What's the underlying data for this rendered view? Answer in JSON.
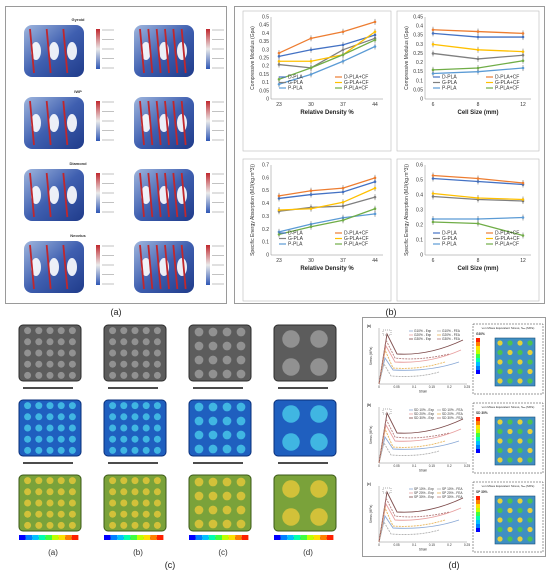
{
  "captions": {
    "a": "(a)",
    "b": "(b)",
    "c": "(c)",
    "d": "(d)"
  },
  "panel_a": {
    "rows": [
      {
        "label": "Gyroid"
      },
      {
        "label": "IWP"
      },
      {
        "label": "Diamond"
      },
      {
        "label": "Neovius"
      }
    ]
  },
  "panel_c": {
    "col_labels": [
      "(a)",
      "(b)",
      "(c)",
      "(d)"
    ]
  },
  "panel_d": {
    "subplots": [
      {
        "tag": "(a)",
        "contour_title": "von Mises Equivalent Stress, Sₑₙ (MPa)",
        "contour_tag": "G30%",
        "legend": [
          "G10% - Exp",
          "G20% - Exp",
          "G30% - Exp",
          "G10% - FEA",
          "G20% - FEA",
          "G30% - FEA"
        ]
      },
      {
        "tag": "(b)",
        "contour_title": "von Mises Equivalent Stress, Sₑₙ (MPa)",
        "contour_tag": "SD 30%",
        "legend": [
          "SD 10% - Exp",
          "SD 20% - Exp",
          "SD 30% - Exp",
          "SD 10% - FEA",
          "SD 20% - FEA",
          "SD 30% - FEA"
        ]
      },
      {
        "tag": "(c)",
        "contour_title": "von Mises Equivalent Stress, Sₑₙ (MPa)",
        "contour_tag": "SP 30%",
        "legend": [
          "SP 10% - Exp",
          "SP 20% - Exp",
          "SP 30% - Exp",
          "SP 10% - FEA",
          "SP 20% - FEA",
          "SP 30% - FEA"
        ]
      }
    ],
    "xlabel": "Strain",
    "ylabel": "Stress (MPa)",
    "xticks": [
      "0",
      "0.05",
      "0.1",
      "0.15",
      "0.2",
      "0.25"
    ]
  },
  "colors": {
    "d_pla": "#4472c4",
    "g_pla": "#7f7f7f",
    "p_pla": "#5b9bd5",
    "d_cf": "#ed7d31",
    "g_cf": "#ffc000",
    "p_cf": "#70ad47",
    "frame": "#9a9a9a"
  },
  "chart_data": [
    {
      "type": "line",
      "x": [
        "23",
        "30",
        "37",
        "44"
      ],
      "xlabel": "Relative Density %",
      "ylabel": "Compressive Modulus (Gpa)",
      "ylim": [
        0,
        0.5
      ],
      "yticks": [
        "0",
        "0.05",
        "0.1",
        "0.15",
        "0.2",
        "0.25",
        "0.3",
        "0.35",
        "0.4",
        "0.45",
        "0.5"
      ],
      "series": [
        {
          "name": "D-PLA",
          "values": [
            0.26,
            0.3,
            0.33,
            0.39
          ]
        },
        {
          "name": "D-PLA+CF",
          "values": [
            0.28,
            0.37,
            0.41,
            0.47
          ]
        },
        {
          "name": "G-PLA",
          "values": [
            0.21,
            0.19,
            0.3,
            0.37
          ]
        },
        {
          "name": "G-PLA+CF",
          "values": [
            0.23,
            0.23,
            0.27,
            0.41
          ]
        },
        {
          "name": "P-PLA",
          "values": [
            0.09,
            0.15,
            0.23,
            0.32
          ]
        },
        {
          "name": "P-PLA+CF",
          "values": [
            0.12,
            0.19,
            0.27,
            0.36
          ]
        }
      ],
      "legend": "bottom"
    },
    {
      "type": "line",
      "x": [
        "6",
        "8",
        "12"
      ],
      "xlabel": "Cell Size (mm)",
      "ylabel": "Compressive Modulus (Gpa)",
      "ylim": [
        0,
        0.45
      ],
      "yticks": [
        "0",
        "0.05",
        "0.1",
        "0.15",
        "0.2",
        "0.25",
        "0.3",
        "0.35",
        "0.4",
        "0.45"
      ],
      "series": [
        {
          "name": "D-PLA",
          "values": [
            0.36,
            0.34,
            0.34
          ]
        },
        {
          "name": "D-PLA+CF",
          "values": [
            0.38,
            0.37,
            0.36
          ]
        },
        {
          "name": "G-PLA",
          "values": [
            0.25,
            0.22,
            0.24
          ]
        },
        {
          "name": "G-PLA+CF",
          "values": [
            0.3,
            0.27,
            0.26
          ]
        },
        {
          "name": "P-PLA",
          "values": [
            0.14,
            0.15,
            0.17
          ]
        },
        {
          "name": "P-PLA+CF",
          "values": [
            0.16,
            0.17,
            0.21
          ]
        }
      ],
      "legend": "bottom"
    },
    {
      "type": "line",
      "x": [
        "23",
        "30",
        "37",
        "44"
      ],
      "xlabel": "Relative Density %",
      "ylabel": "Specific Energy Absorption (MJ/(kg.m^3))",
      "ylim": [
        0,
        0.7
      ],
      "yticks": [
        "0",
        "0.1",
        "0.2",
        "0.3",
        "0.4",
        "0.5",
        "0.6",
        "0.7"
      ],
      "series": [
        {
          "name": "D-PLA",
          "values": [
            0.44,
            0.47,
            0.49,
            0.57
          ]
        },
        {
          "name": "D-PLA+CF",
          "values": [
            0.46,
            0.5,
            0.52,
            0.6
          ]
        },
        {
          "name": "G-PLA",
          "values": [
            0.34,
            0.37,
            0.38,
            0.45
          ]
        },
        {
          "name": "G-PLA+CF",
          "values": [
            0.35,
            0.36,
            0.41,
            0.52
          ]
        },
        {
          "name": "P-PLA",
          "values": [
            0.18,
            0.24,
            0.29,
            0.32
          ]
        },
        {
          "name": "P-PLA+CF",
          "values": [
            0.16,
            0.22,
            0.27,
            0.36
          ]
        }
      ],
      "legend": "bottom"
    },
    {
      "type": "line",
      "x": [
        "6",
        "8",
        "12"
      ],
      "xlabel": "Cell Size (mm)",
      "ylabel": "Specific Energy Absorption (MJ/(kg.m^3))",
      "ylim": [
        0,
        0.6
      ],
      "yticks": [
        "0",
        "0.1",
        "0.2",
        "0.3",
        "0.4",
        "0.5",
        "0.6"
      ],
      "series": [
        {
          "name": "D-PLA",
          "values": [
            0.51,
            0.49,
            0.47
          ]
        },
        {
          "name": "D-PLA+CF",
          "values": [
            0.53,
            0.51,
            0.48
          ]
        },
        {
          "name": "G-PLA",
          "values": [
            0.39,
            0.37,
            0.36
          ]
        },
        {
          "name": "G-PLA+CF",
          "values": [
            0.41,
            0.38,
            0.37
          ]
        },
        {
          "name": "P-PLA",
          "values": [
            0.24,
            0.24,
            0.25
          ]
        },
        {
          "name": "P-PLA+CF",
          "values": [
            0.22,
            0.21,
            0.13
          ]
        }
      ],
      "legend": "bottom"
    }
  ]
}
